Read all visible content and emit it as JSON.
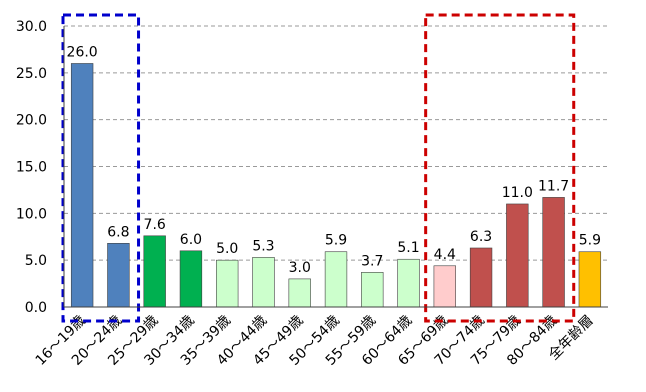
{
  "chart_data": {
    "type": "bar",
    "title": "",
    "xlabel": "",
    "ylabel": "",
    "ylim": [
      0,
      30
    ],
    "yticks": [
      "0.0",
      "5.0",
      "10.0",
      "15.0",
      "20.0",
      "25.0",
      "30.0"
    ],
    "grid": true,
    "categories": [
      "16～19歳",
      "20～24歳",
      "25～29歳",
      "30～34歳",
      "35～39歳",
      "40～44歳",
      "45～49歳",
      "50～54歳",
      "55～59歳",
      "60～64歳",
      "65～69歳",
      "70～74歳",
      "75～79歳",
      "80～84歳",
      "全年齢層"
    ],
    "values": [
      26.0,
      6.8,
      7.6,
      6.0,
      5.0,
      5.3,
      3.0,
      5.9,
      3.7,
      5.1,
      4.4,
      6.3,
      11.0,
      11.7,
      5.9
    ],
    "value_labels": [
      "26.0",
      "6.8",
      "7.6",
      "6.0",
      "5.0",
      "5.3",
      "3.0",
      "5.9",
      "3.7",
      "5.1",
      "4.4",
      "6.3",
      "11.0",
      "11.7",
      "5.9"
    ],
    "colors": [
      "#4F81BD",
      "#4F81BD",
      "#00B050",
      "#00B050",
      "#CCFFCC",
      "#CCFFCC",
      "#CCFFCC",
      "#CCFFCC",
      "#CCFFCC",
      "#CCFFCC",
      "#FFCCCC",
      "#C0504D",
      "#C0504D",
      "#C0504D",
      "#FFC000"
    ],
    "highlight_groups": [
      {
        "categories": [
          "16～19歳",
          "20～24歳"
        ],
        "style": "dashed-box",
        "color": "#0000CC"
      },
      {
        "categories": [
          "65～69歳",
          "70～74歳",
          "75～79歳",
          "80～84歳"
        ],
        "style": "dashed-box",
        "color": "#CC0000"
      }
    ]
  }
}
